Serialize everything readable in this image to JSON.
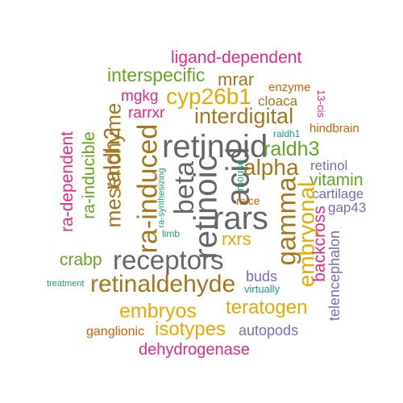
{
  "colors": {
    "pink": "#e7298a",
    "green": "#66a61e",
    "brown": "#a6761d",
    "orange": "#d95f02",
    "gold": "#e6ab02",
    "gray": "#666666",
    "purple": "#7570b3",
    "teal": "#1b9e77"
  },
  "words": [
    "ligand-dependent",
    "interspecific",
    "mrar",
    "enzyme",
    "13-cis",
    "mgkg",
    "cyp26b1",
    "cloaca",
    "rarrxr",
    "interdigital",
    "raldh1",
    "hindbrain",
    "ra-dependent",
    "ra-inducible",
    "mesenchyme",
    "raldh2",
    "ra-induced",
    "retinoid",
    "beta",
    "retinoic",
    "acid",
    "ra-synthesizing",
    "raldh3",
    "alpha",
    "mouse",
    "retinol",
    "vitamin",
    "cartilage",
    "mice",
    "rars",
    "gamma",
    "embryonal",
    "gap43",
    "limb",
    "rxrs",
    "backcross",
    "telencephalon",
    "crabp",
    "receptors",
    "buds",
    "treatment",
    "retinaldehyde",
    "virtually",
    "embryos",
    "teratogen",
    "ganglionic",
    "isotypes",
    "autopods",
    "dehydrogenase"
  ]
}
